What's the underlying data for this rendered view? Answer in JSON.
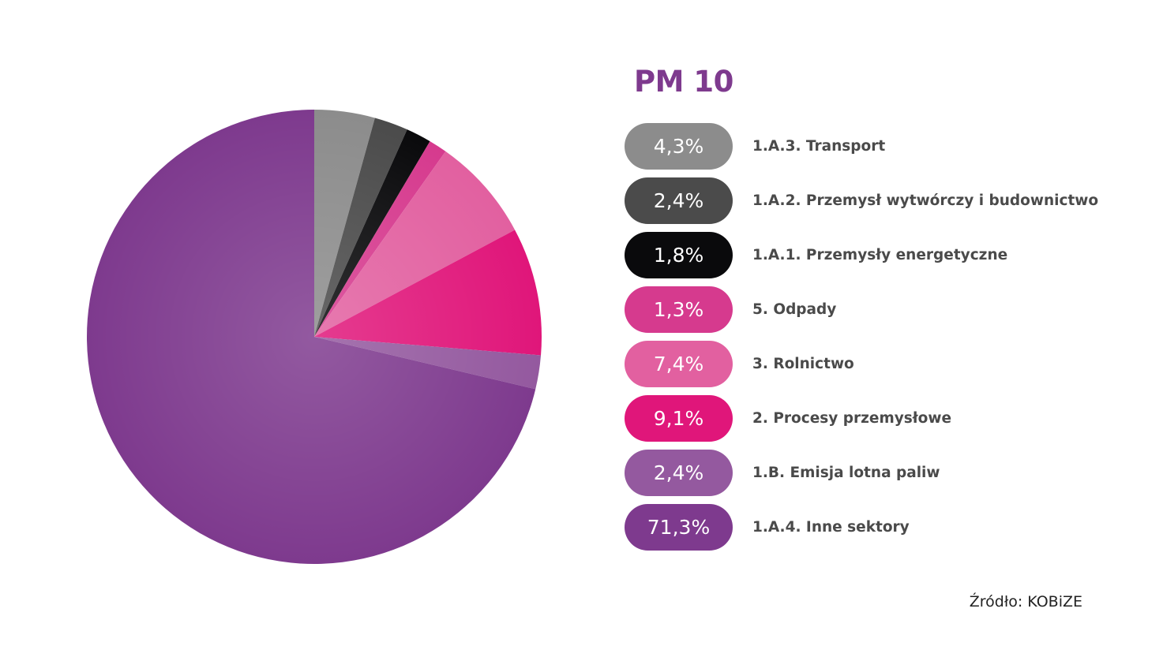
{
  "chart_data": {
    "type": "pie",
    "title": "PM 10",
    "slices": [
      {
        "label": "1.A.3. Transport",
        "value": 4.3,
        "display": "4,3%",
        "color": "#8C8C8C"
      },
      {
        "label": "1.A.2. Przemysł wytwórczy i budownictwo",
        "value": 2.4,
        "display": "2,4%",
        "color": "#4B4B4B"
      },
      {
        "label": "1.A.1. Przemysły energetyczne",
        "value": 1.8,
        "display": "1,8%",
        "color": "#0A0A0C"
      },
      {
        "label": "5. Odpady",
        "value": 1.3,
        "display": "1,3%",
        "color": "#D63A8E"
      },
      {
        "label": "3. Rolnictwo",
        "value": 7.4,
        "display": "7,4%",
        "color": "#E260A0"
      },
      {
        "label": "2. Procesy przemysłowe",
        "value": 9.1,
        "display": "9,1%",
        "color": "#E0167A"
      },
      {
        "label": "1.B. Emisja lotna paliw",
        "value": 2.4,
        "display": "2,4%",
        "color": "#94599F"
      },
      {
        "label": "1.A.4. Inne sektory",
        "value": 71.3,
        "display": "71,3%",
        "color": "#7E3A8E"
      }
    ],
    "start_angle": "12 o'clock",
    "direction": "clockwise",
    "legend_position": "right"
  },
  "source": "Źródło: KOBiZE"
}
